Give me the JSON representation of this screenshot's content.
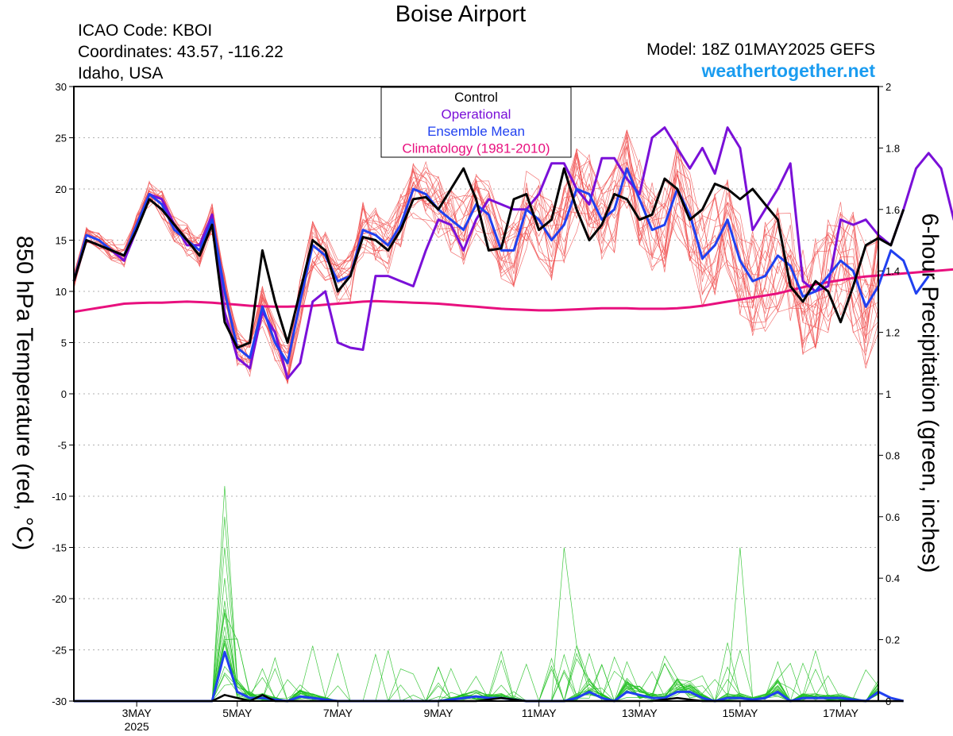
{
  "header": {
    "title": "Boise Airport",
    "icao": "ICAO Code: KBOI",
    "coords": "Coordinates: 43.57, -116.22",
    "region": "Idaho, USA",
    "model": "Model: 18Z 01MAY2025 GEFS",
    "site": "weathertogether.net"
  },
  "colors": {
    "control": "#000000",
    "operational": "#7a10d8",
    "ensemble_mean": "#2040f0",
    "climatology": "#e8107e",
    "member_temp": "#f05050",
    "member_precip": "#20c020",
    "site": "#1a9cf0"
  },
  "chart_data": {
    "type": "line",
    "title": "Boise Airport",
    "ylabel": "850 hPa Temperature (red, °C)",
    "y2label": "6-hour Precipitation (green, inches)",
    "ylim": [
      -30,
      30
    ],
    "y2lim": [
      0,
      2
    ],
    "yticks": [
      -30,
      -25,
      -20,
      -15,
      -10,
      -5,
      0,
      5,
      10,
      15,
      20,
      25,
      30
    ],
    "y2ticks": [
      "0",
      "0.2",
      "0.4",
      "0.6",
      "0.8",
      "1",
      "1.2",
      "1.4",
      "1.6",
      "1.8",
      "2"
    ],
    "x_day_range": [
      1.75,
      17.75
    ],
    "xticks": [
      {
        "day": 3,
        "label": "3MAY",
        "sub": "2025"
      },
      {
        "day": 5,
        "label": "5MAY",
        "sub": ""
      },
      {
        "day": 7,
        "label": "7MAY",
        "sub": ""
      },
      {
        "day": 9,
        "label": "9MAY",
        "sub": ""
      },
      {
        "day": 11,
        "label": "11MAY",
        "sub": ""
      },
      {
        "day": 13,
        "label": "13MAY",
        "sub": ""
      },
      {
        "day": 15,
        "label": "15MAY",
        "sub": ""
      },
      {
        "day": 17,
        "label": "17MAY",
        "sub": ""
      }
    ],
    "grid": "horizontal dotted",
    "legend": {
      "placement": "top-center",
      "entries": [
        "Control",
        "Operational",
        "Ensemble Mean",
        "Climatology (1981-2010)"
      ]
    },
    "x_start_day": 1.75,
    "x_step_days": 0.25,
    "series": [
      {
        "name": "Control",
        "axis": "temp",
        "values": [
          11,
          15,
          14.5,
          14,
          13.5,
          16,
          19,
          18,
          16.5,
          15,
          13.5,
          16.5,
          7,
          4.5,
          5,
          14,
          9,
          5,
          10,
          15,
          14,
          10,
          11.5,
          15.3,
          15,
          14,
          16,
          19,
          19.2,
          18,
          20,
          22,
          19,
          14,
          14.2,
          19,
          19.5,
          16,
          17,
          22,
          18,
          15,
          16.5,
          19.5,
          19,
          17,
          17.5,
          21,
          20,
          17,
          18,
          20.5,
          20,
          19,
          20,
          18.5,
          17,
          10.5,
          9,
          11,
          10,
          7,
          10.5,
          14.5,
          15.2,
          14.5,
          18
        ]
      },
      {
        "name": "Operational",
        "axis": "temp",
        "values": [
          11,
          15,
          14.5,
          14,
          13,
          16,
          19.5,
          19,
          16.5,
          14.5,
          14.5,
          17.5,
          8,
          3.5,
          2.5,
          8,
          6,
          1.5,
          3,
          9,
          10,
          5,
          4.5,
          4.3,
          11.5,
          11.5,
          11,
          10.5,
          14,
          17,
          16.5,
          14,
          17,
          19,
          18.5,
          18,
          18,
          19.5,
          22.5,
          22.5,
          20,
          18.5,
          23,
          23,
          21,
          19.5,
          25,
          26,
          24,
          22,
          24,
          21.5,
          26,
          24,
          16,
          18,
          20,
          22.5,
          11,
          10,
          10.5,
          17,
          16.5,
          17,
          15.5,
          14.5,
          18,
          22,
          23.5,
          22,
          17,
          17.5,
          19,
          19.5,
          14,
          10.5,
          12.5,
          16
        ]
      },
      {
        "name": "Ensemble Mean",
        "axis": "temp",
        "values": [
          11,
          15.5,
          15,
          14,
          13.5,
          16.5,
          19.5,
          18.5,
          16,
          15,
          14,
          17,
          10,
          4.5,
          3.5,
          8.5,
          5,
          3,
          9,
          14.5,
          13.5,
          11,
          11.5,
          16,
          15.5,
          14.5,
          16.5,
          20,
          19.5,
          18,
          17,
          16,
          18.5,
          17.5,
          14,
          14,
          18,
          17,
          15,
          16.5,
          20,
          19.5,
          17,
          18,
          22,
          19,
          16,
          16.5,
          20,
          17.5,
          13.2,
          14.5,
          17,
          13,
          11,
          11.5,
          13.5,
          12.5,
          9.5,
          10,
          11.5,
          13,
          12,
          8.5,
          10.5,
          14,
          13,
          9.8,
          11.5
        ]
      },
      {
        "name": "Climatology (1981-2010)",
        "axis": "temp",
        "values": [
          8,
          8.2,
          8.4,
          8.6,
          8.8,
          8.85,
          8.9,
          8.9,
          8.95,
          9,
          8.95,
          8.9,
          8.8,
          8.7,
          8.6,
          8.55,
          8.5,
          8.5,
          8.55,
          8.6,
          8.7,
          8.8,
          8.9,
          9,
          9.05,
          9,
          8.95,
          8.9,
          8.85,
          8.8,
          8.7,
          8.6,
          8.5,
          8.4,
          8.3,
          8.25,
          8.2,
          8.15,
          8.15,
          8.2,
          8.25,
          8.3,
          8.35,
          8.35,
          8.35,
          8.3,
          8.3,
          8.3,
          8.35,
          8.45,
          8.6,
          8.8,
          9,
          9.2,
          9.4,
          9.6,
          9.8,
          10.1,
          10.4,
          10.7,
          10.9,
          11.1,
          11.3,
          11.45,
          11.55,
          11.65,
          11.75,
          11.85,
          11.95,
          12.05,
          12.15,
          12.25,
          12.35
        ]
      },
      {
        "name": "Control precipitation",
        "axis": "precip",
        "values": [
          0,
          0,
          0,
          0,
          0,
          0,
          0,
          0,
          0,
          0,
          0,
          0,
          0.02,
          0.01,
          0,
          0.02,
          0,
          0,
          0,
          0,
          0,
          0,
          0,
          0,
          0,
          0,
          0,
          0,
          0,
          0,
          0,
          0,
          0,
          0.005,
          0.01,
          0.005,
          0,
          0,
          0,
          0,
          0,
          0,
          0,
          0,
          0,
          0,
          0,
          0.005,
          0.01,
          0.005,
          0,
          0,
          0,
          0,
          0,
          0,
          0,
          0,
          0,
          0,
          0,
          0,
          0,
          0,
          0,
          0,
          0
        ]
      },
      {
        "name": "Ensemble mean precipitation",
        "axis": "precip",
        "values": [
          0,
          0,
          0,
          0,
          0,
          0,
          0,
          0,
          0,
          0,
          0,
          0,
          0.16,
          0.03,
          0.01,
          0.01,
          0.005,
          0,
          0.015,
          0.01,
          0.005,
          0,
          0,
          0,
          0,
          0,
          0,
          0,
          0,
          0,
          0.005,
          0.01,
          0.015,
          0.01,
          0.01,
          0.005,
          0,
          0,
          0,
          0,
          0.01,
          0.03,
          0.01,
          0,
          0.03,
          0.02,
          0.01,
          0.01,
          0.03,
          0.03,
          0.01,
          0,
          0.01,
          0.01,
          0.005,
          0.01,
          0.03,
          0,
          0.01,
          0.01,
          0.01,
          0.01,
          0.005,
          0,
          0.03,
          0.01,
          0
        ]
      }
    ]
  }
}
